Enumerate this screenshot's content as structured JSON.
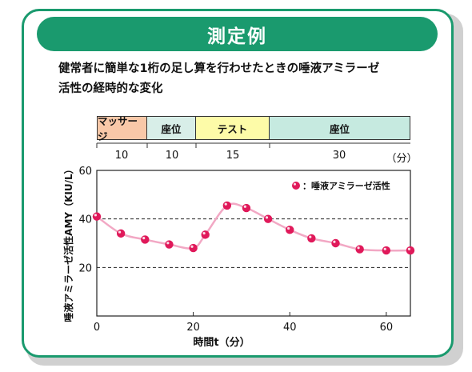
{
  "header": {
    "title": "測定例"
  },
  "description": {
    "line1": "健常者に簡単な1桁の足し算を行わせたときの唾液アミラーゼ",
    "line2": "活性の経時的な変化"
  },
  "phases": [
    {
      "label": "マッサージ",
      "color": "#f8c8a8",
      "duration": "10"
    },
    {
      "label": "座位",
      "color": "#d8eee8",
      "duration": "10"
    },
    {
      "label": "テスト",
      "color": "#fdfba8",
      "duration": "15"
    },
    {
      "label": "座位",
      "color": "#c6eae0",
      "duration": "30"
    }
  ],
  "duration_unit": "（分）",
  "colors": {
    "accent": "#1a9a6e",
    "series_marker": "#e0195a",
    "series_line": "#f2a8c4"
  },
  "chart_data": {
    "type": "line",
    "xlabel": "時間t（分）",
    "ylabel": "唾液アミラーゼ活性AMY（KIU/L）",
    "xlim": [
      0,
      65
    ],
    "ylim": [
      0,
      60
    ],
    "xticks": [
      0,
      20,
      40,
      60
    ],
    "yticks": [
      20,
      40,
      60
    ],
    "reference_lines": [
      20,
      40
    ],
    "legend_position": "top-right",
    "series": [
      {
        "name": "：唾液アミラーゼ活性",
        "x": [
          0,
          5,
          10,
          15,
          20,
          22.5,
          27,
          31,
          35.5,
          40,
          44.5,
          49.5,
          54.5,
          60,
          65
        ],
        "y": [
          41,
          34,
          31.5,
          29.5,
          28,
          33.5,
          45.5,
          44.5,
          40,
          35.5,
          32,
          30,
          27.5,
          27,
          27
        ]
      }
    ]
  }
}
